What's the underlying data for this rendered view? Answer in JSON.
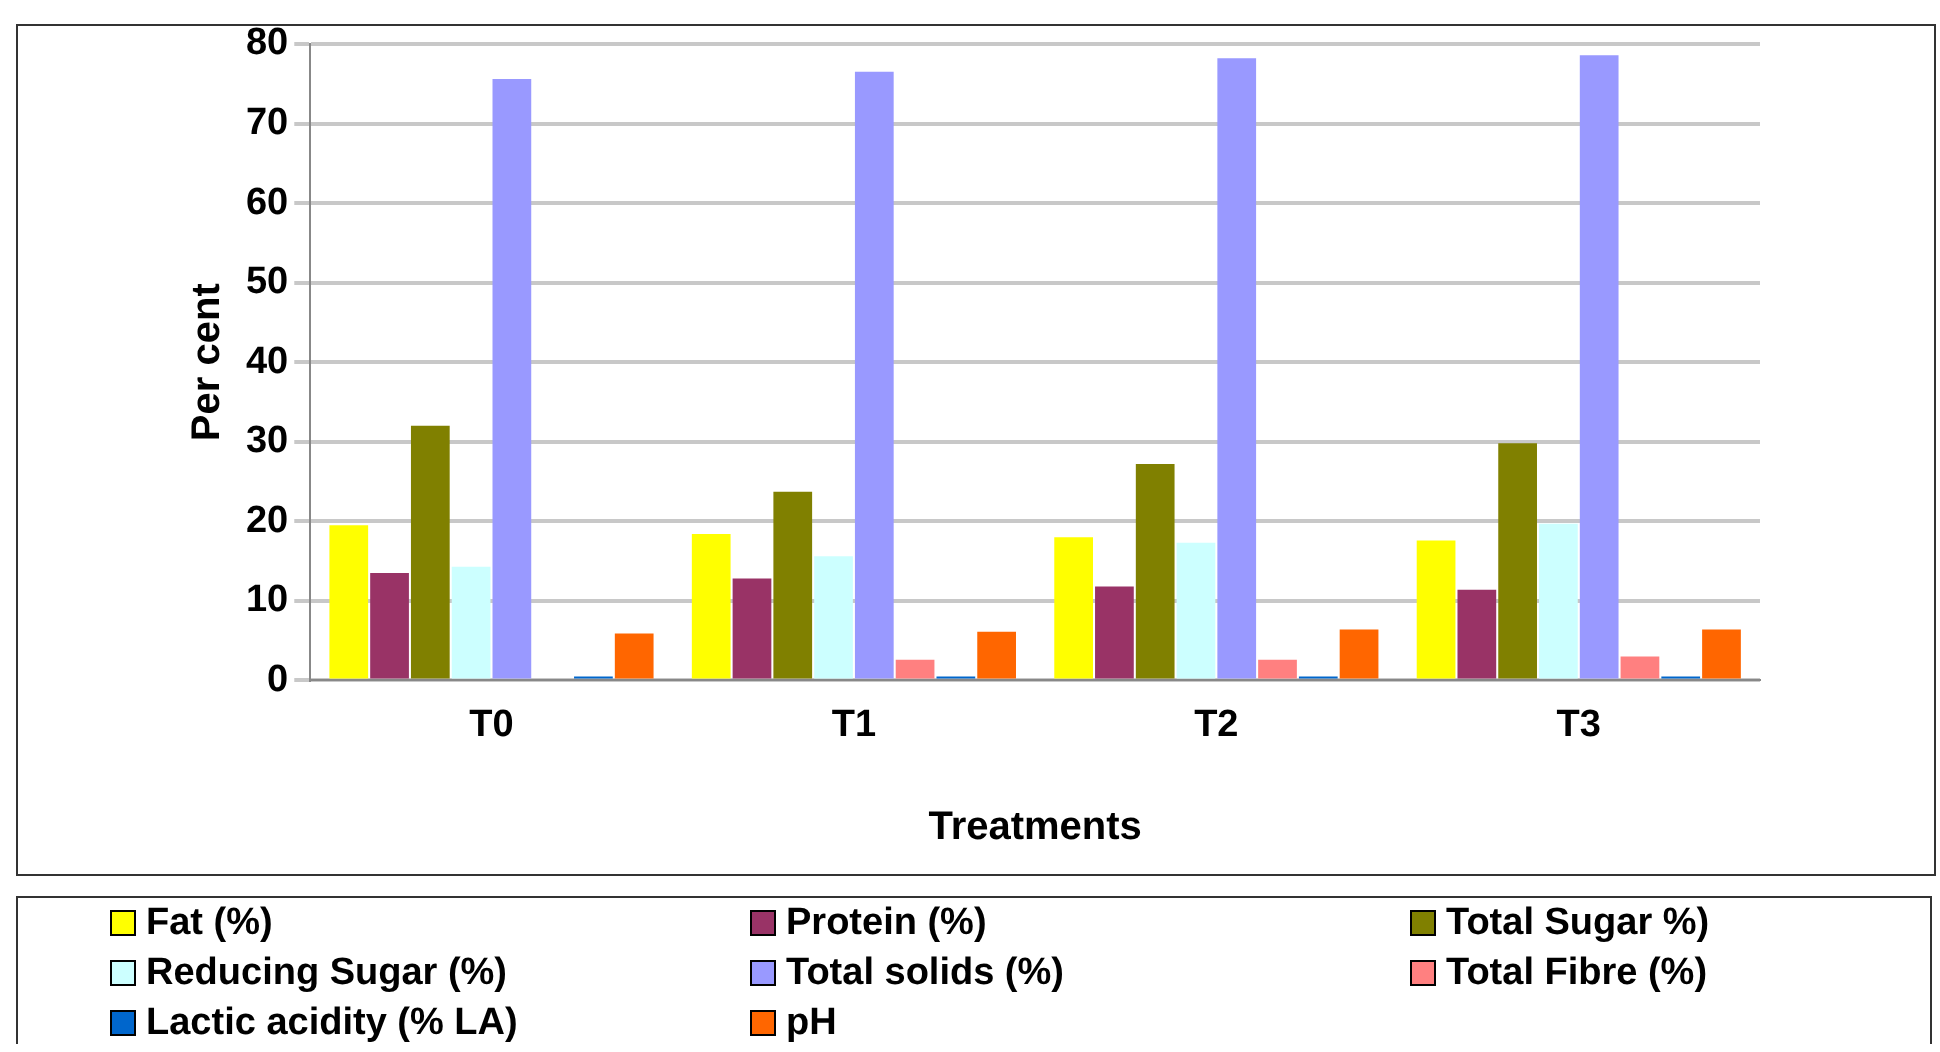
{
  "chart_data": {
    "type": "bar",
    "xlabel": "Treatments",
    "ylabel": "Per cent",
    "categories": [
      "T0",
      "T1",
      "T2",
      "T3"
    ],
    "series": [
      {
        "name": "Fat (%)",
        "color": "#ffff00",
        "values": [
          19.5,
          18.4,
          18.0,
          17.6
        ]
      },
      {
        "name": "Protein (%)",
        "color": "#993366",
        "values": [
          13.5,
          12.8,
          11.8,
          11.4
        ]
      },
      {
        "name": "Total Sugar %)",
        "color": "#808000",
        "values": [
          32,
          23.7,
          27.2,
          29.8
        ]
      },
      {
        "name": "Reducing Sugar (%)",
        "color": "#ccffff",
        "values": [
          14.3,
          15.6,
          17.3,
          19.7
        ]
      },
      {
        "name": "Total solids (%)",
        "color": "#9999ff",
        "values": [
          75.6,
          76.5,
          78.2,
          78.6
        ]
      },
      {
        "name": "Total Fibre (%)",
        "color": "#ff8080",
        "values": [
          0,
          2.6,
          2.6,
          3.0
        ]
      },
      {
        "name": "Lactic acidity (% LA)",
        "color": "#0066cc",
        "values": [
          0.5,
          0.5,
          0.5,
          0.5
        ]
      },
      {
        "name": "pH",
        "color": "#ff6600",
        "values": [
          5.9,
          6.1,
          6.4,
          6.4
        ]
      }
    ],
    "ylim": [
      0,
      80
    ],
    "yticks": [
      0,
      10,
      20,
      30,
      40,
      50,
      60,
      70,
      80
    ],
    "grid": "y",
    "legend": "bottom"
  }
}
